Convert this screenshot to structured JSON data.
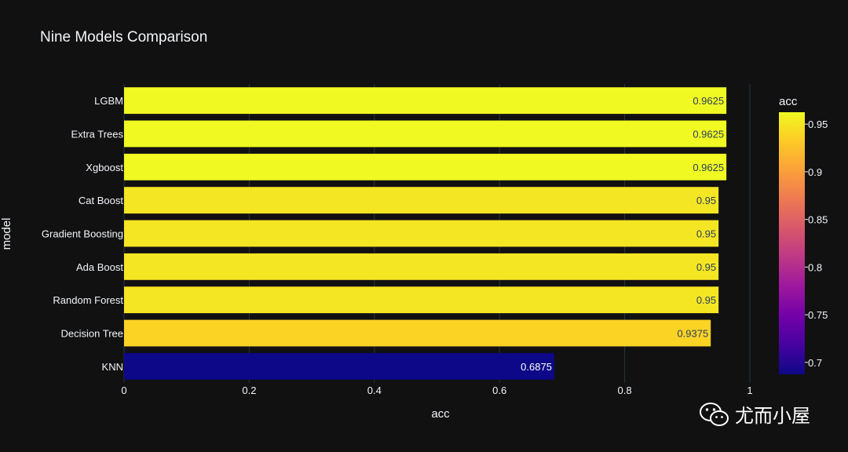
{
  "chart_data": {
    "type": "bar",
    "orientation": "horizontal",
    "title": "Nine Models Comparison",
    "xlabel": "acc",
    "ylabel": "model",
    "xlim": [
      0,
      1
    ],
    "xticks": [
      0,
      0.2,
      0.4,
      0.6,
      0.8,
      1
    ],
    "xtick_labels": [
      "0",
      "0.2",
      "0.4",
      "0.6",
      "0.8",
      "1"
    ],
    "categories": [
      "LGBM",
      "Extra Trees",
      "Xgboost",
      "Cat Boost",
      "Gradient Boosting",
      "Ada Boost",
      "Random Forest",
      "Decision Tree",
      "KNN"
    ],
    "values": [
      0.9625,
      0.9625,
      0.9625,
      0.95,
      0.95,
      0.95,
      0.95,
      0.9375,
      0.6875
    ],
    "value_labels": [
      "0.9625",
      "0.9625",
      "0.9625",
      "0.95",
      "0.95",
      "0.95",
      "0.95",
      "0.9375",
      "0.6875"
    ],
    "grid": true,
    "colorbar": {
      "title": "acc",
      "colorscale": "plasma",
      "range": [
        0.6875,
        0.9625
      ],
      "ticks": [
        0.7,
        0.75,
        0.8,
        0.85,
        0.9,
        0.95
      ],
      "tick_labels": [
        "0.7",
        "0.75",
        "0.8",
        "0.85",
        "0.9",
        "0.95"
      ]
    }
  },
  "colors": {
    "background": "#111111",
    "text": "#f2f5fa",
    "grid": "#283442"
  },
  "watermark": {
    "icon": "wechat-icon",
    "text": "尤而小屋"
  }
}
